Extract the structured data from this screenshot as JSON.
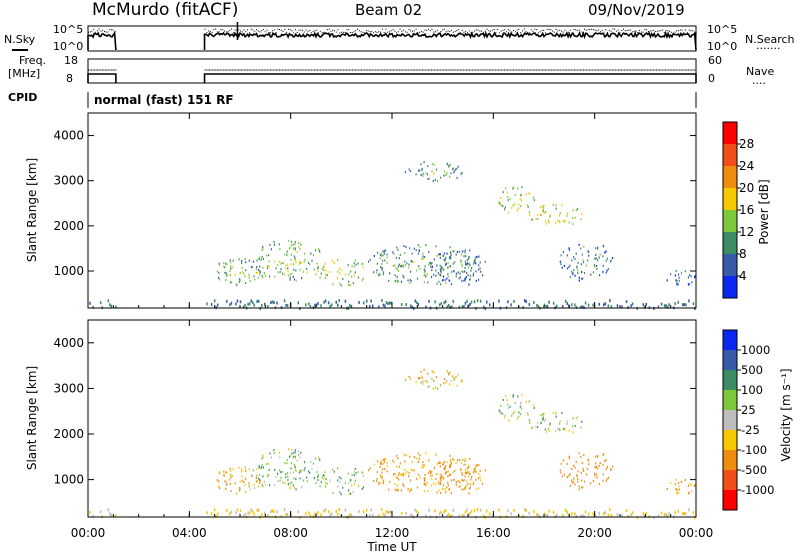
{
  "header": {
    "station": "McMurdo (fitACF)",
    "beam": "Beam 02",
    "date": "09/Nov/2019"
  },
  "nsky_panel": {
    "left_label": "N.Sky",
    "left_ticks": [
      "10^5",
      "10^0"
    ],
    "right_ticks": [
      "10^5",
      "10^0"
    ],
    "right_label": "N.Search",
    "right_legend": "·······"
  },
  "freq_panel": {
    "left_label_1": "Freq.",
    "left_label_2": "[MHz]",
    "left_ticks": [
      "18",
      "8"
    ],
    "right_ticks": [
      "60",
      "0"
    ],
    "right_label": "Nave",
    "right_legend": "····"
  },
  "cpid": {
    "label": "CPID",
    "text": "normal (fast) 151 RF"
  },
  "yaxis": {
    "label": "Slant Range [km]",
    "range": [
      180,
      4500
    ],
    "ticks": [
      "4000",
      "3000",
      "2000",
      "1000"
    ]
  },
  "xaxis": {
    "label": "Time UT",
    "range_hours": [
      0,
      24
    ],
    "ticks": [
      "00:00",
      "04:00",
      "08:00",
      "12:00",
      "16:00",
      "20:00",
      "00:00"
    ]
  },
  "power_colorbar": {
    "label": "Power [dB]",
    "ticks": [
      "28",
      "24",
      "20",
      "16",
      "12",
      "8",
      "4"
    ],
    "colors": [
      "#ff0000",
      "#f05018",
      "#f08c10",
      "#f5c800",
      "#7ec83c",
      "#3c8c64",
      "#3a5aa8",
      "#0a28f0"
    ]
  },
  "velocity_colorbar": {
    "label": "Velocity [m s⁻¹]",
    "ticks": [
      "1000",
      "500",
      "100",
      "25",
      "-25",
      "-100",
      "-500",
      "-1000"
    ],
    "colors": [
      "#0a28f0",
      "#3a5aa8",
      "#3c8c64",
      "#7ec83c",
      "#bebebe",
      "#f5c800",
      "#f08c10",
      "#f05018",
      "#ff0000"
    ]
  },
  "chart_data": {
    "type": "heatmap",
    "title": "McMurdo (fitACF)  Beam 02  09/Nov/2019",
    "xlabel": "Time UT",
    "ylabel": "Slant Range [km]",
    "x_range_hours": [
      0,
      24
    ],
    "y_range_km": [
      180,
      4500
    ],
    "data_gap_hours": [
      1.1,
      4.6
    ],
    "scatter_regions": [
      {
        "t0": 4.9,
        "t1": 7.1,
        "r0": 700,
        "r1": 1300,
        "power": 14,
        "velocity": -80
      },
      {
        "t0": 6.5,
        "t1": 9.3,
        "r0": 800,
        "r1": 1700,
        "power": 14,
        "velocity": 60
      },
      {
        "t0": 9.0,
        "t1": 11.0,
        "r0": 700,
        "r1": 1300,
        "power": 16,
        "velocity": 80
      },
      {
        "t0": 11.0,
        "t1": 15.5,
        "r0": 700,
        "r1": 1600,
        "power": 12,
        "velocity": -150
      },
      {
        "t0": 13.5,
        "t1": 15.8,
        "r0": 700,
        "r1": 1500,
        "power": 10,
        "velocity": -200
      },
      {
        "t0": 16.0,
        "t1": 17.6,
        "r0": 2300,
        "r1": 2900,
        "power": 16,
        "velocity": 40
      },
      {
        "t0": 17.3,
        "t1": 19.5,
        "r0": 2000,
        "r1": 2500,
        "power": 18,
        "velocity": 30
      },
      {
        "t0": 18.6,
        "t1": 20.7,
        "r0": 800,
        "r1": 1700,
        "power": 10,
        "velocity": -300
      },
      {
        "t0": 12.5,
        "t1": 14.8,
        "r0": 3000,
        "r1": 3450,
        "power": 12,
        "velocity": -60
      },
      {
        "t0": 22.8,
        "t1": 24.0,
        "r0": 700,
        "r1": 1100,
        "power": 8,
        "velocity": -100
      }
    ]
  }
}
